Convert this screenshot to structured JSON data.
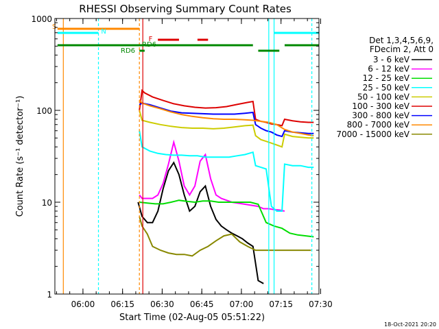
{
  "chart_data": {
    "type": "line",
    "title": "RHESSI Observing Summary Count Rates",
    "xlabel": "Start Time (02-Aug-05 05:51:22)",
    "ylabel": "Count Rate (s⁻¹ detector⁻¹)",
    "yscale": "log",
    "ylim": [
      1,
      1000
    ],
    "xlim_minutes": [
      -2,
      98
    ],
    "ytick_values": [
      1,
      10,
      100,
      1000
    ],
    "ytick_labels": [
      "1",
      "10",
      "100",
      "1000"
    ],
    "xticks": [
      {
        "label": "06:00",
        "minute": 8.63
      },
      {
        "label": "06:15",
        "minute": 23.63
      },
      {
        "label": "06:30",
        "minute": 38.63
      },
      {
        "label": "06:45",
        "minute": 53.63
      },
      {
        "label": "07:00",
        "minute": 68.63
      },
      {
        "label": "07:15",
        "minute": 83.63
      },
      {
        "label": "07:30",
        "minute": 98.63
      }
    ],
    "legend": {
      "header": [
        "Det 1,3,4,5,6,9,",
        "FDecim 2, Att 0"
      ],
      "placement": "right",
      "entries": [
        {
          "label": "3 - 6 keV",
          "color": "#000000"
        },
        {
          "label": "6 - 12 keV",
          "color": "#ff00ff"
        },
        {
          "label": "12 - 25 keV",
          "color": "#00dd00"
        },
        {
          "label": "25 - 50 keV",
          "color": "#00ffff"
        },
        {
          "label": "50 - 100 keV",
          "color": "#cccc00"
        },
        {
          "label": "100 - 300 keV",
          "color": "#dd0000"
        },
        {
          "label": "300 - 800 keV",
          "color": "#0000ff"
        },
        {
          "label": "800 - 7000 keV",
          "color": "#ff8800"
        },
        {
          "label": "7000 - 15000 keV",
          "color": "#888800"
        }
      ]
    },
    "flag_labels": [
      "S",
      "N",
      "F",
      "RD6",
      "RD6"
    ],
    "vertical_markers_min": [
      1.2,
      14.5,
      30.0,
      31.3,
      79.0,
      81.0,
      95.3
    ],
    "series": [
      {
        "name": "3 - 6 keV",
        "color": "#000000",
        "x": [
          29.5,
          31,
          33,
          35,
          37,
          39,
          41,
          43,
          45,
          47,
          49,
          51,
          53,
          55,
          57,
          59,
          61,
          63,
          65,
          67,
          69,
          71,
          73,
          75,
          77
        ],
        "y": [
          10,
          7,
          6,
          6,
          8,
          14,
          22,
          27,
          20,
          12,
          8,
          9,
          13,
          15,
          9,
          6.5,
          5.5,
          5,
          4.6,
          4.3,
          4,
          3.6,
          3.3,
          1.4,
          1.3
        ]
      },
      {
        "name": "6 - 12 keV",
        "color": "#ff00ff",
        "x": [
          30,
          31,
          33,
          35,
          37,
          39,
          41,
          43,
          45,
          47,
          49,
          51,
          53,
          55,
          57,
          59,
          61,
          63,
          65,
          67,
          69,
          71,
          73,
          75,
          77,
          79,
          81,
          83,
          85
        ],
        "y": [
          12,
          11,
          11,
          11,
          12,
          16,
          26,
          45,
          28,
          15,
          12,
          15,
          28,
          33,
          18,
          12,
          11,
          10.5,
          10,
          9.8,
          9.6,
          9.4,
          9.2,
          9,
          8.5,
          8.5,
          8.3,
          8.2,
          8
        ]
      },
      {
        "name": "12 - 25 keV",
        "color": "#00dd00",
        "x": [
          30,
          33,
          36,
          39,
          42,
          45,
          48,
          51,
          54,
          57,
          60,
          63,
          66,
          69,
          72,
          75,
          78,
          81,
          84,
          87,
          90,
          93,
          96
        ],
        "y": [
          10,
          9.8,
          9.6,
          9.6,
          10,
          10.5,
          10.2,
          10,
          10.3,
          10.3,
          10,
          10,
          10,
          10,
          10,
          9.5,
          6,
          5.5,
          5.2,
          4.6,
          4.4,
          4.3,
          4.2
        ]
      },
      {
        "name": "25 - 50 keV",
        "color": "#00ffff",
        "x": [
          30,
          31,
          34,
          37,
          40,
          43,
          46,
          49,
          52,
          55,
          58,
          61,
          64,
          67,
          70,
          73,
          74,
          76,
          78,
          80,
          82,
          84,
          85,
          88,
          91,
          94,
          96
        ],
        "y": [
          60,
          40,
          36,
          34,
          33,
          32.5,
          32.5,
          32,
          32,
          31,
          31,
          31,
          31,
          32,
          33,
          35,
          25,
          24,
          23,
          9,
          8,
          8,
          26,
          25,
          25,
          24,
          24
        ]
      },
      {
        "name": "50 - 100 keV",
        "color": "#cccc00",
        "x": [
          30,
          31,
          34,
          38,
          42,
          46,
          50,
          54,
          58,
          62,
          66,
          70,
          73,
          74,
          76,
          78,
          80,
          82,
          84,
          85,
          88,
          91,
          94,
          96
        ],
        "y": [
          100,
          78,
          74,
          70,
          67,
          65,
          64,
          64,
          63,
          64,
          66,
          68,
          69,
          53,
          48,
          46,
          44,
          42,
          40,
          55,
          52,
          51,
          50,
          50
        ]
      },
      {
        "name": "100 - 300 keV",
        "color": "#dd0000",
        "x": [
          30,
          31,
          32,
          35,
          39,
          43,
          47,
          51,
          55,
          59,
          63,
          67,
          71,
          73,
          74,
          76,
          78,
          80,
          82,
          84,
          85,
          88,
          91,
          94,
          96
        ],
        "y": [
          100,
          165,
          155,
          140,
          128,
          118,
          112,
          108,
          106,
          107,
          110,
          116,
          122,
          125,
          80,
          76,
          74,
          71,
          70,
          68,
          80,
          77,
          75,
          74,
          74
        ]
      },
      {
        "name": "300 - 800 keV",
        "color": "#0000ff",
        "x": [
          30,
          31,
          34,
          38,
          42,
          46,
          50,
          54,
          58,
          62,
          66,
          70,
          73,
          74,
          76,
          78,
          80,
          82,
          84,
          85,
          88,
          91,
          94,
          96
        ],
        "y": [
          115,
          120,
          115,
          106,
          98,
          94,
          93,
          92,
          91,
          91,
          91,
          93,
          95,
          70,
          64,
          60,
          58,
          54,
          52,
          60,
          58,
          57,
          56,
          56
        ]
      },
      {
        "name": "800 - 7000 keV",
        "color": "#ff8800",
        "x": [
          30,
          31,
          34,
          38,
          42,
          46,
          50,
          54,
          58,
          62,
          66,
          70,
          73,
          76,
          79,
          82,
          85,
          88,
          91,
          94,
          96
        ],
        "y": [
          130,
          120,
          112,
          104,
          96,
          90,
          86,
          83,
          81,
          80,
          80,
          79,
          78,
          76,
          74,
          70,
          62,
          58,
          56,
          54,
          53
        ]
      },
      {
        "name": "7000 - 15000 keV",
        "color": "#888800",
        "x": [
          30,
          31,
          33,
          35,
          38,
          41,
          44,
          47,
          50,
          53,
          56,
          59,
          62,
          65,
          68,
          71,
          74,
          77,
          80,
          83,
          86,
          89,
          92,
          95
        ],
        "y": [
          7,
          5.5,
          4.5,
          3.3,
          3,
          2.8,
          2.7,
          2.7,
          2.6,
          3,
          3.3,
          3.8,
          4.3,
          4.5,
          3.7,
          3.3,
          3,
          3,
          3,
          3,
          3,
          3,
          3,
          3
        ]
      }
    ]
  },
  "footer_date": "18-Oct-2021 20:20"
}
